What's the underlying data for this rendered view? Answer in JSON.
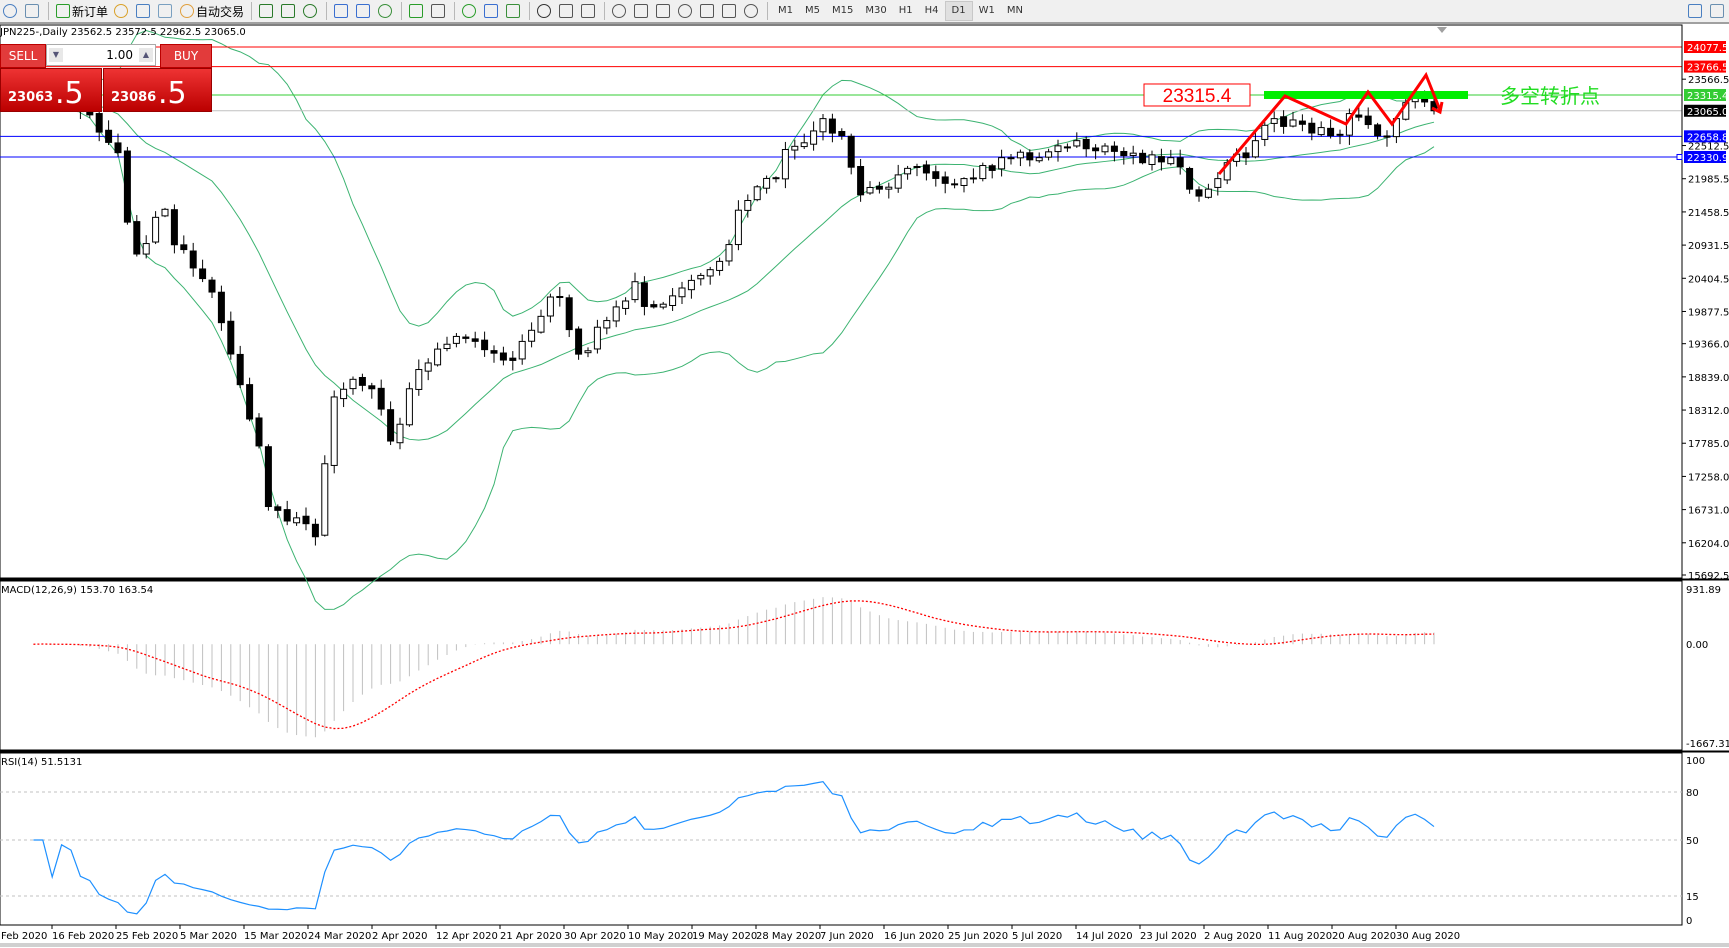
{
  "toolbar": {
    "new_order": "新订单",
    "auto_trading": "自动交易",
    "timeframes": [
      "M1",
      "M5",
      "M15",
      "M30",
      "H1",
      "H4",
      "D1",
      "W1",
      "MN"
    ],
    "active_timeframe": "D1",
    "icons": [
      "new-chart-icon",
      "zoom-profile-icon",
      "new-order-icon",
      "gold-icon",
      "market-watch-icon",
      "signal-icon",
      "auto-trading-icon",
      "bar-chart-icon",
      "candle-chart-icon",
      "line-chart-icon",
      "zoom-in-icon",
      "zoom-out-icon",
      "tile-windows-icon",
      "auto-scroll-icon",
      "chart-shift-icon",
      "indicators-icon",
      "periods-icon",
      "templates-icon",
      "cursor-icon",
      "crosshair-icon",
      "vertical-line-icon",
      "horizontal-line-icon",
      "trendline-icon",
      "fibonacci-fan-icon",
      "fibonacci-icon",
      "text-icon",
      "text-label-icon",
      "arrows-icon",
      "search-icon",
      "chat-icon"
    ]
  },
  "chart": {
    "title": "JPN225-,Daily 23562.5 23572.5 22962.5 23065.0"
  },
  "trade_panel": {
    "sell": "SELL",
    "buy": "BUY",
    "lot": "1.00",
    "bid_main": "23063",
    "bid_frac": ".5",
    "ask_main": "23086",
    "ask_frac": ".5"
  },
  "price_axis": {
    "max": 24077.5,
    "min": 15692.5,
    "ticks": [
      "23566.5",
      "22512.5",
      "21985.5",
      "21458.5",
      "20931.5",
      "20404.5",
      "19877.5",
      "19366.0",
      "18839.0",
      "18312.0",
      "17785.0",
      "17258.0",
      "16731.0",
      "16204.0",
      "15692.5"
    ]
  },
  "levels": [
    {
      "value": 24077.5,
      "label": "24077.5",
      "color": "#ff0000",
      "text_color": "#ffffff"
    },
    {
      "value": 23766.5,
      "label": "23766.5",
      "color": "#ff0000",
      "text_color": "#ffffff"
    },
    {
      "value": 23315.4,
      "label": "23315.4",
      "color": "#33cc33",
      "text_color": "#ffffff"
    },
    {
      "value": 23065.0,
      "label": "23065.0",
      "color": "#000000",
      "text_color": "#ffffff",
      "line_color": "#c0c0c0"
    },
    {
      "value": 22658.8,
      "label": "22658.8",
      "color": "#0000ff",
      "text_color": "#ffffff"
    },
    {
      "value": 22330.9,
      "label": "22330.9",
      "color": "#0000ff",
      "text_color": "#ffffff"
    }
  ],
  "annotation": {
    "price_label": "23315.4",
    "text": "多空转折点",
    "text_color": "#22dd22",
    "zone_color": "#00ee00",
    "arrow_color": "#ff0000"
  },
  "macd": {
    "label": "MACD(12,26,9) 153.70 163.54",
    "max": 931.89,
    "min": -1667.31,
    "ticks": [
      "931.89",
      "0.00",
      "-1667.31"
    ],
    "histogram_color": "#c0c0c0",
    "signal_color": "#ff0000"
  },
  "rsi": {
    "label": "RSI(14) 51.5131",
    "ticks": [
      "100",
      "80",
      "50",
      "15",
      "0"
    ],
    "levels": [
      80,
      50,
      15
    ],
    "line_color": "#1e90ff"
  },
  "time_axis": [
    "Feb 2020",
    "16 Feb 2020",
    "25 Feb 2020",
    "5 Mar 2020",
    "15 Mar 2020",
    "24 Mar 2020",
    "2 Apr 2020",
    "12 Apr 2020",
    "21 Apr 2020",
    "30 Apr 2020",
    "10 May 2020",
    "19 May 2020",
    "28 May 2020",
    "7 Jun 2020",
    "16 Jun 2020",
    "25 Jun 2020",
    "5 Jul 2020",
    "14 Jul 2020",
    "23 Jul 2020",
    "2 Aug 2020",
    "11 Aug 2020",
    "20 Aug 2020",
    "30 Aug 2020"
  ],
  "price_series": {
    "colors": {
      "bull": "#ffffff",
      "bear": "#000000",
      "bands": "#3cb371"
    },
    "closes": [
      [
        "2020-02-10",
        23300
      ],
      [
        "2020-02-14",
        23250
      ],
      [
        "2020-02-18",
        23000
      ],
      [
        "2020-02-21",
        22400
      ],
      [
        "2020-02-25",
        20790
      ],
      [
        "2020-02-28",
        21500
      ],
      [
        "2020-03-05",
        20400
      ],
      [
        "2020-03-09",
        19700
      ],
      [
        "2020-03-12",
        18170
      ],
      [
        "2020-03-16",
        16780
      ],
      [
        "2020-03-19",
        16600
      ],
      [
        "2020-03-23",
        16300
      ],
      [
        "2020-03-25",
        18520
      ],
      [
        "2020-03-27",
        18800
      ],
      [
        "2020-03-31",
        18650
      ],
      [
        "2020-04-02",
        17820
      ],
      [
        "2020-04-06",
        18650
      ],
      [
        "2020-04-09",
        19280
      ],
      [
        "2020-04-14",
        19450
      ],
      [
        "2020-04-21",
        19100
      ],
      [
        "2020-04-24",
        19800
      ],
      [
        "2020-04-28",
        20100
      ],
      [
        "2020-04-30",
        19200
      ],
      [
        "2020-05-06",
        19950
      ],
      [
        "2020-05-08",
        20350
      ],
      [
        "2020-05-12",
        19950
      ],
      [
        "2020-05-15",
        20250
      ],
      [
        "2020-05-19",
        20450
      ],
      [
        "2020-05-22",
        20940
      ],
      [
        "2020-05-26",
        21640
      ],
      [
        "2020-05-28",
        21990
      ],
      [
        "2020-06-02",
        22500
      ],
      [
        "2020-06-05",
        22940
      ],
      [
        "2020-06-09",
        22670
      ],
      [
        "2020-06-11",
        21730
      ],
      [
        "2020-06-15",
        21820
      ],
      [
        "2020-06-18",
        22150
      ],
      [
        "2020-06-23",
        21990
      ],
      [
        "2020-06-29",
        21990
      ],
      [
        "2020-07-02",
        22320
      ],
      [
        "2020-07-08",
        22320
      ],
      [
        "2020-07-14",
        22590
      ],
      [
        "2020-07-20",
        22420
      ],
      [
        "2020-07-23",
        22240
      ],
      [
        "2020-07-28",
        22320
      ],
      [
        "2020-07-30",
        21820
      ],
      [
        "2020-08-03",
        21820
      ],
      [
        "2020-08-05",
        22240
      ],
      [
        "2020-08-07",
        22320
      ],
      [
        "2020-08-10",
        22590
      ],
      [
        "2020-08-12",
        22940
      ],
      [
        "2020-08-17",
        22850
      ],
      [
        "2020-08-20",
        22670
      ],
      [
        "2020-08-24",
        23020
      ],
      [
        "2020-08-27",
        22670
      ],
      [
        "2020-08-31",
        22940
      ],
      [
        "2020-09-02",
        23300
      ],
      [
        "2020-09-04",
        23065
      ]
    ]
  }
}
